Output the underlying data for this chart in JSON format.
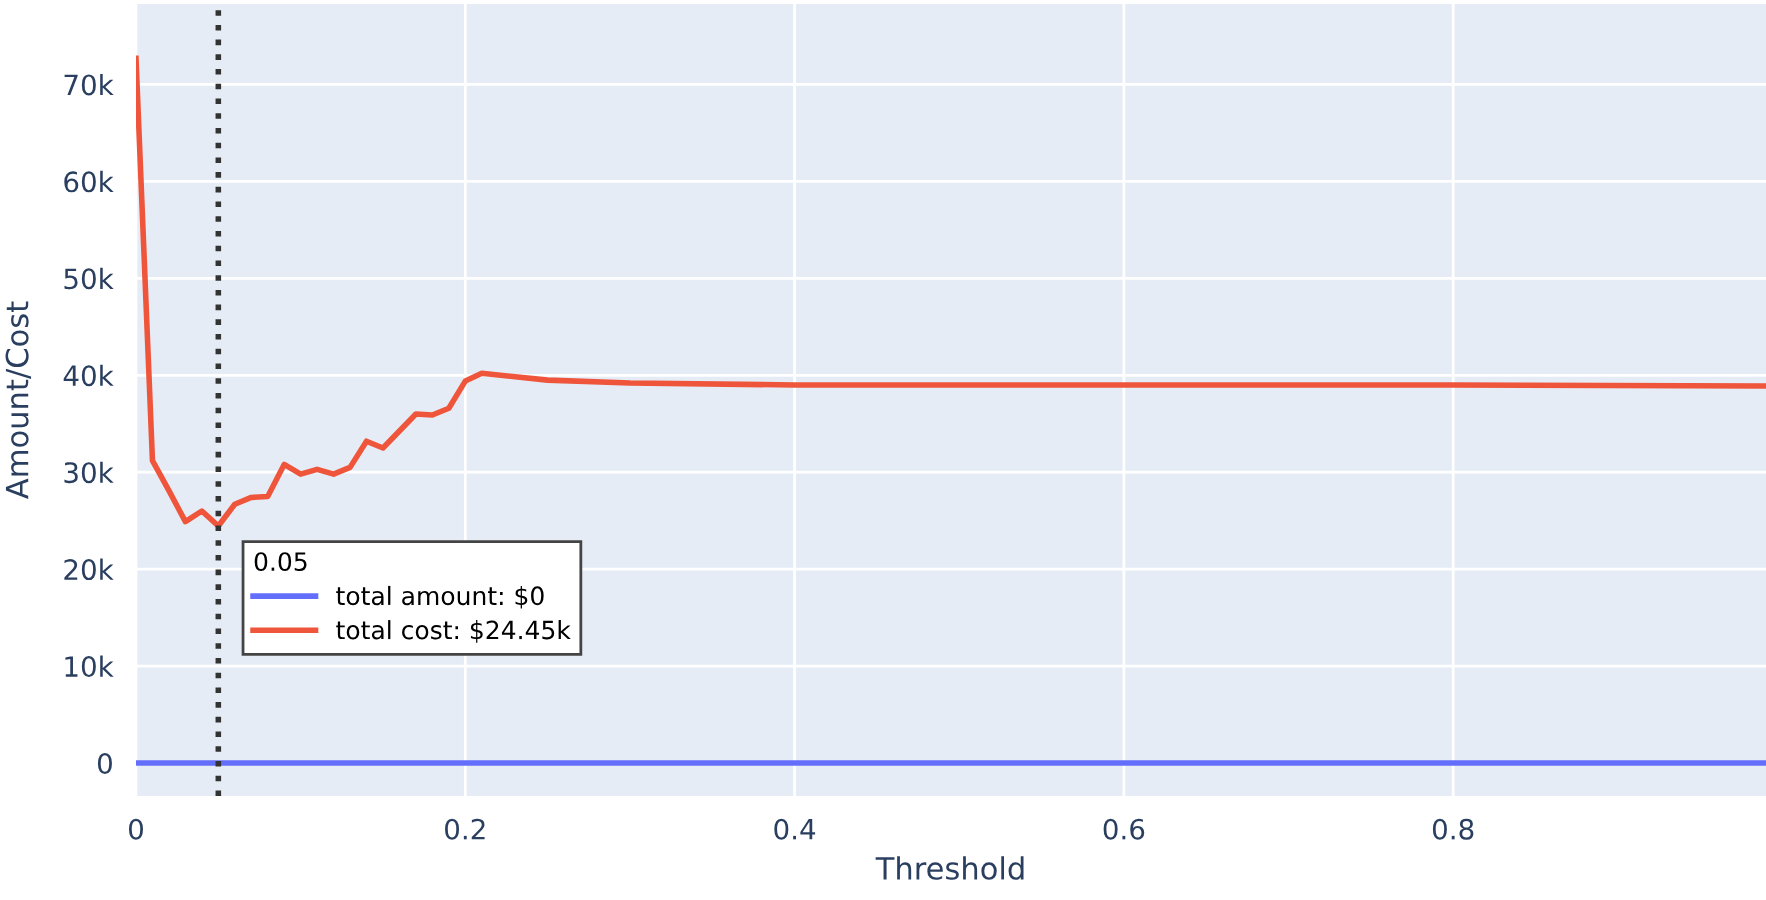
{
  "chart_data": {
    "type": "line",
    "xlabel": "Threshold",
    "ylabel": "Amount/Cost",
    "xlim": [
      0,
      0.99
    ],
    "ylim": [
      -3400,
      78300
    ],
    "xticks": [
      0,
      0.2,
      0.4,
      0.6,
      0.8
    ],
    "yticks": [
      {
        "value": 0,
        "label": "0"
      },
      {
        "value": 10000,
        "label": "10k"
      },
      {
        "value": 20000,
        "label": "20k"
      },
      {
        "value": 30000,
        "label": "30k"
      },
      {
        "value": 40000,
        "label": "40k"
      },
      {
        "value": 50000,
        "label": "50k"
      },
      {
        "value": 60000,
        "label": "60k"
      },
      {
        "value": 70000,
        "label": "70k"
      }
    ],
    "grid": true,
    "legend": "center left",
    "legend_title": "0.05",
    "ref_lines": [
      {
        "axis": "x",
        "value": 0.05,
        "label": null,
        "color": "#333333",
        "line_style": "dotted"
      }
    ],
    "series": [
      {
        "name": "total amount: $0",
        "color": "#636efa",
        "x": [
          0,
          0.99
        ],
        "values": [
          0,
          0
        ]
      },
      {
        "name": "total cost: $24.45k",
        "color": "#ef553b",
        "x": [
          0,
          0.01,
          0.02,
          0.03,
          0.04,
          0.05,
          0.06,
          0.07,
          0.08,
          0.09,
          0.1,
          0.11,
          0.12,
          0.13,
          0.14,
          0.15,
          0.17,
          0.18,
          0.19,
          0.2,
          0.21,
          0.25,
          0.3,
          0.4,
          0.6,
          0.8,
          0.99
        ],
        "values": [
          72700,
          31200,
          28100,
          24900,
          26000,
          24450,
          26700,
          27400,
          27500,
          30800,
          29800,
          30300,
          29800,
          30500,
          33200,
          32500,
          36000,
          35900,
          36600,
          39400,
          40200,
          39500,
          39200,
          39000,
          39000,
          39000,
          38900
        ]
      }
    ]
  }
}
